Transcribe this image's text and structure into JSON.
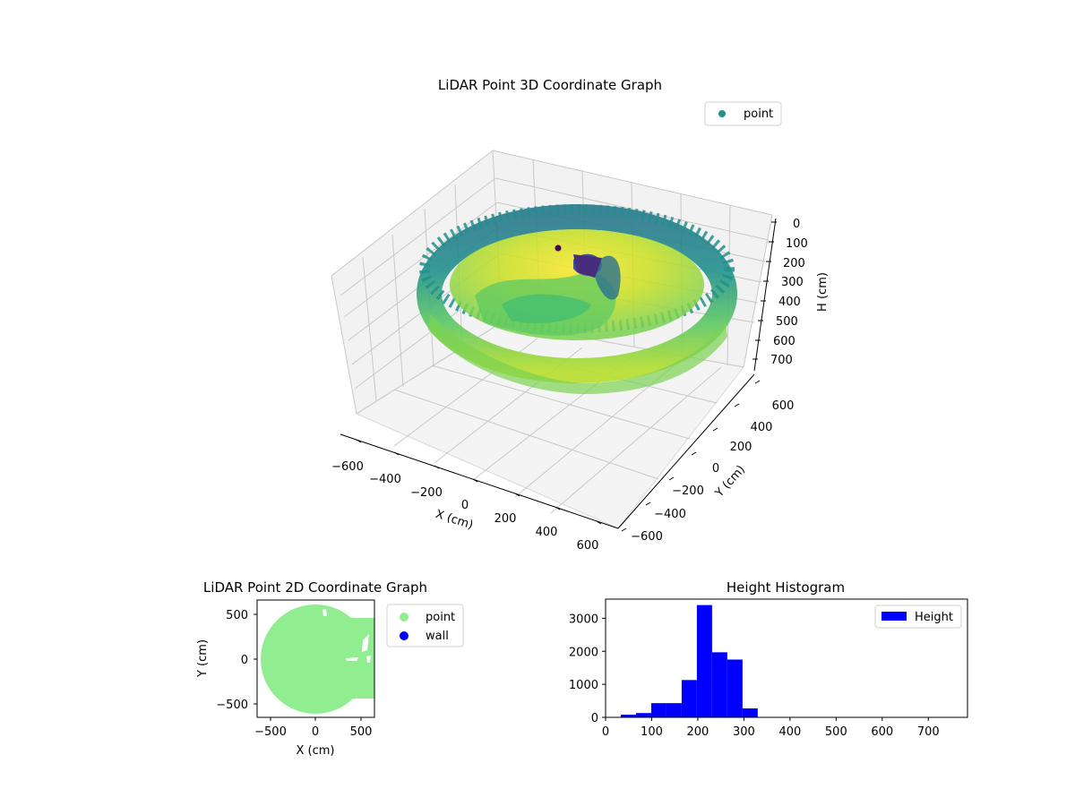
{
  "chart_data": [
    {
      "type": "scatter",
      "projection": "3d",
      "title": "LiDAR Point 3D Coordinate Graph",
      "xlabel": "X (cm)",
      "ylabel": "Y (cm)",
      "zlabel": "H (cm)",
      "xticks": [
        "−600",
        "−400",
        "−200",
        "0",
        "200",
        "400",
        "600"
      ],
      "yticks": [
        "600",
        "400",
        "200",
        "0",
        "−200",
        "−400",
        "−600"
      ],
      "zticks": [
        "0",
        "100",
        "200",
        "300",
        "400",
        "500",
        "600",
        "700"
      ],
      "xlim": [
        -650,
        650
      ],
      "ylim": [
        -650,
        650
      ],
      "zlim": [
        0,
        750
      ],
      "z_inverted": true,
      "colormap": "viridis",
      "legend": {
        "label": "point",
        "position": "top-right",
        "color": "#21918c"
      },
      "grid": true
    },
    {
      "type": "scatter",
      "title": "LiDAR Point 2D Coordinate Graph",
      "xlabel": "X (cm)",
      "ylabel": "Y (cm)",
      "xticks": [
        "−500",
        "0",
        "500"
      ],
      "yticks": [
        "500",
        "0",
        "−500"
      ],
      "xlim": [
        -650,
        650
      ],
      "ylim": [
        -650,
        650
      ],
      "series": [
        {
          "name": "point",
          "color": "#90ee90"
        },
        {
          "name": "wall",
          "color": "#0000ff"
        }
      ],
      "legend_position": "outside-right"
    },
    {
      "type": "bar",
      "title": "Height Histogram",
      "xticks": [
        "0",
        "100",
        "200",
        "300",
        "400",
        "500",
        "600",
        "700"
      ],
      "yticks": [
        "0",
        "1000",
        "2000",
        "3000"
      ],
      "xlim": [
        0,
        785
      ],
      "ylim": [
        0,
        3580
      ],
      "bin_width": 33,
      "bins": [
        {
          "x0": 0,
          "value": 10
        },
        {
          "x0": 33,
          "value": 80
        },
        {
          "x0": 66,
          "value": 130
        },
        {
          "x0": 99,
          "value": 430
        },
        {
          "x0": 132,
          "value": 430
        },
        {
          "x0": 165,
          "value": 1130
        },
        {
          "x0": 198,
          "value": 3400
        },
        {
          "x0": 231,
          "value": 1970
        },
        {
          "x0": 264,
          "value": 1750
        },
        {
          "x0": 297,
          "value": 270
        }
      ],
      "series": [
        {
          "name": "Height",
          "color": "#0000ff"
        }
      ],
      "legend_position": "top-right"
    }
  ]
}
